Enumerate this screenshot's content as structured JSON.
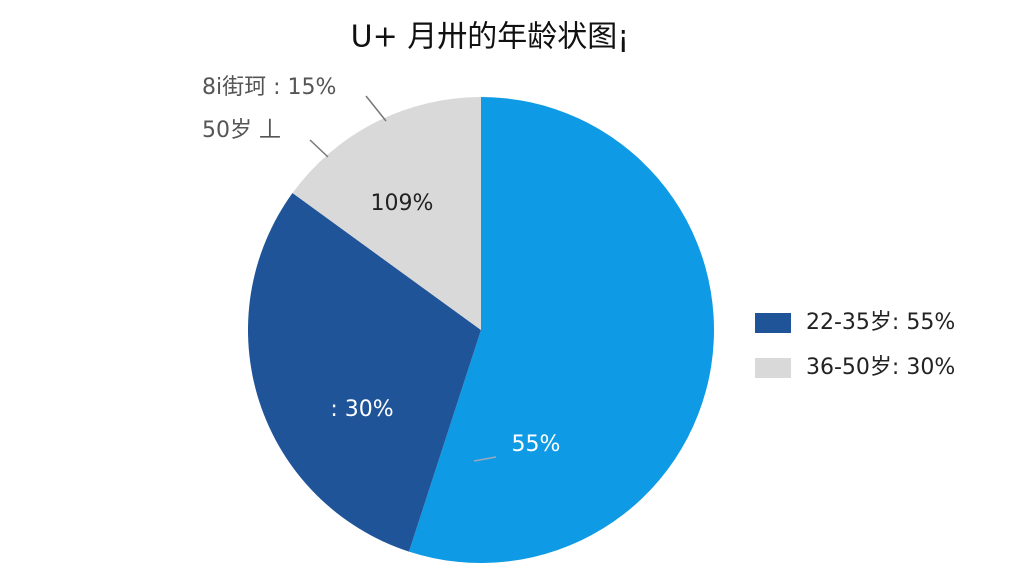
{
  "chart_data": {
    "type": "pie",
    "title": "U+ 月卅的年龄状图¡",
    "values": [
      55,
      30,
      15
    ],
    "colors": [
      "#0f9ae6",
      "#1f5499",
      "#d9d9d9"
    ],
    "annotations": [
      "109%",
      ": 30%",
      "55%",
      "8i街珂 : 15%",
      "50岁 丄"
    ],
    "legend": [
      {
        "label": "22-35岁: 55%",
        "color": "#1f5499"
      },
      {
        "label": "36-50岁: 30%",
        "color": "#d9d9d9"
      }
    ]
  }
}
